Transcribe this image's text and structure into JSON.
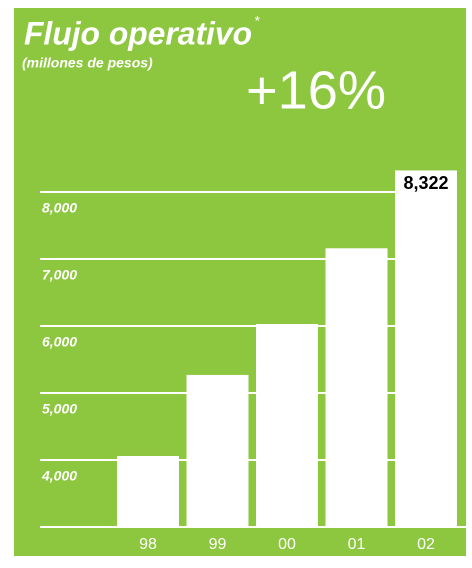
{
  "chart_data": {
    "type": "bar",
    "title": "Flujo operativo",
    "title_mark": "*",
    "subtitle": "(millones de pesos)",
    "annotation": "+16%",
    "categories": [
      "98",
      "99",
      "00",
      "01",
      "02"
    ],
    "values": [
      4060,
      5270,
      6030,
      7160,
      8322
    ],
    "value_labels": [
      null,
      null,
      null,
      null,
      "8,322"
    ],
    "color": "#ffffff",
    "background": "#8dc63f",
    "ylim": [
      3000,
      9000
    ],
    "yticks": [
      {
        "value": 4000,
        "label": "4,000"
      },
      {
        "value": 5000,
        "label": "5,000"
      },
      {
        "value": 6000,
        "label": "6,000"
      },
      {
        "value": 7000,
        "label": "7,000"
      },
      {
        "value": 8000,
        "label": "8,000"
      }
    ],
    "grid": true
  }
}
